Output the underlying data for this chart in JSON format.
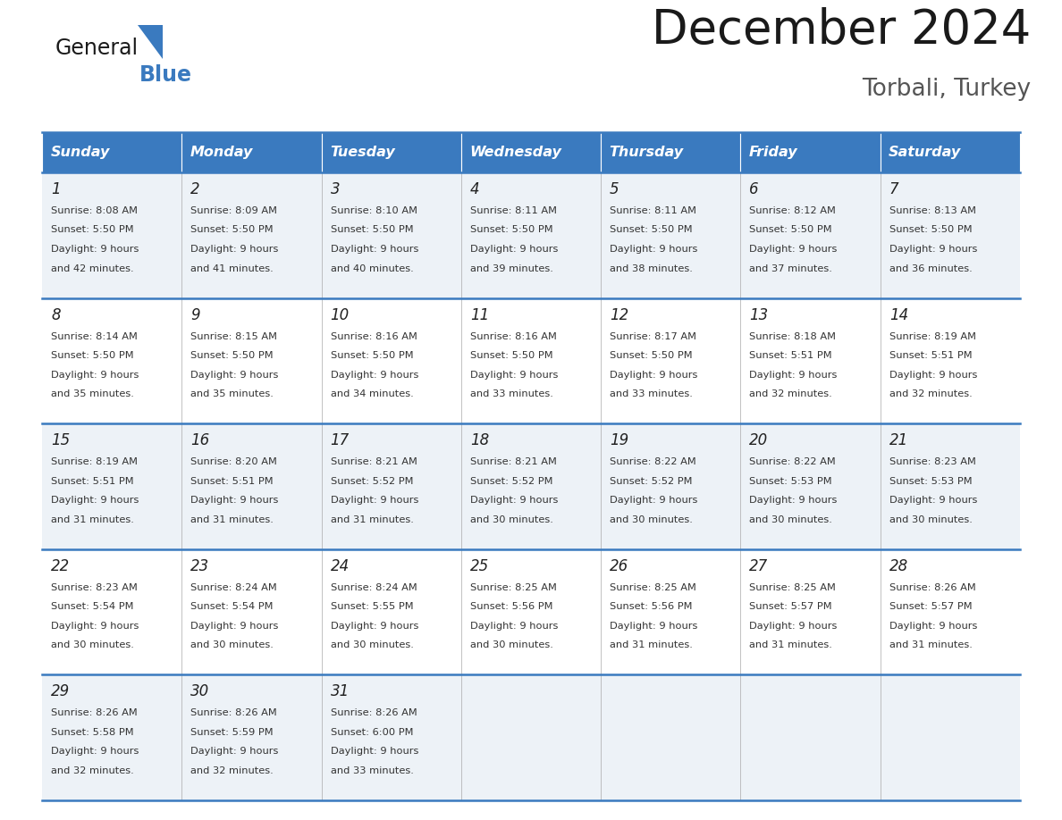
{
  "title": "December 2024",
  "subtitle": "Torbali, Turkey",
  "header_bg": "#3a7abf",
  "header_text_color": "#ffffff",
  "cell_bg_even": "#edf2f7",
  "cell_bg_odd": "#ffffff",
  "border_color": "#3a7abf",
  "grid_line_color": "#aaaaaa",
  "day_names": [
    "Sunday",
    "Monday",
    "Tuesday",
    "Wednesday",
    "Thursday",
    "Friday",
    "Saturday"
  ],
  "weeks": [
    [
      {
        "day": "1",
        "sunrise": "8:08 AM",
        "sunset": "5:50 PM",
        "daylight": "9 hours",
        "daylight2": "and 42 minutes."
      },
      {
        "day": "2",
        "sunrise": "8:09 AM",
        "sunset": "5:50 PM",
        "daylight": "9 hours",
        "daylight2": "and 41 minutes."
      },
      {
        "day": "3",
        "sunrise": "8:10 AM",
        "sunset": "5:50 PM",
        "daylight": "9 hours",
        "daylight2": "and 40 minutes."
      },
      {
        "day": "4",
        "sunrise": "8:11 AM",
        "sunset": "5:50 PM",
        "daylight": "9 hours",
        "daylight2": "and 39 minutes."
      },
      {
        "day": "5",
        "sunrise": "8:11 AM",
        "sunset": "5:50 PM",
        "daylight": "9 hours",
        "daylight2": "and 38 minutes."
      },
      {
        "day": "6",
        "sunrise": "8:12 AM",
        "sunset": "5:50 PM",
        "daylight": "9 hours",
        "daylight2": "and 37 minutes."
      },
      {
        "day": "7",
        "sunrise": "8:13 AM",
        "sunset": "5:50 PM",
        "daylight": "9 hours",
        "daylight2": "and 36 minutes."
      }
    ],
    [
      {
        "day": "8",
        "sunrise": "8:14 AM",
        "sunset": "5:50 PM",
        "daylight": "9 hours",
        "daylight2": "and 35 minutes."
      },
      {
        "day": "9",
        "sunrise": "8:15 AM",
        "sunset": "5:50 PM",
        "daylight": "9 hours",
        "daylight2": "and 35 minutes."
      },
      {
        "day": "10",
        "sunrise": "8:16 AM",
        "sunset": "5:50 PM",
        "daylight": "9 hours",
        "daylight2": "and 34 minutes."
      },
      {
        "day": "11",
        "sunrise": "8:16 AM",
        "sunset": "5:50 PM",
        "daylight": "9 hours",
        "daylight2": "and 33 minutes."
      },
      {
        "day": "12",
        "sunrise": "8:17 AM",
        "sunset": "5:50 PM",
        "daylight": "9 hours",
        "daylight2": "and 33 minutes."
      },
      {
        "day": "13",
        "sunrise": "8:18 AM",
        "sunset": "5:51 PM",
        "daylight": "9 hours",
        "daylight2": "and 32 minutes."
      },
      {
        "day": "14",
        "sunrise": "8:19 AM",
        "sunset": "5:51 PM",
        "daylight": "9 hours",
        "daylight2": "and 32 minutes."
      }
    ],
    [
      {
        "day": "15",
        "sunrise": "8:19 AM",
        "sunset": "5:51 PM",
        "daylight": "9 hours",
        "daylight2": "and 31 minutes."
      },
      {
        "day": "16",
        "sunrise": "8:20 AM",
        "sunset": "5:51 PM",
        "daylight": "9 hours",
        "daylight2": "and 31 minutes."
      },
      {
        "day": "17",
        "sunrise": "8:21 AM",
        "sunset": "5:52 PM",
        "daylight": "9 hours",
        "daylight2": "and 31 minutes."
      },
      {
        "day": "18",
        "sunrise": "8:21 AM",
        "sunset": "5:52 PM",
        "daylight": "9 hours",
        "daylight2": "and 30 minutes."
      },
      {
        "day": "19",
        "sunrise": "8:22 AM",
        "sunset": "5:52 PM",
        "daylight": "9 hours",
        "daylight2": "and 30 minutes."
      },
      {
        "day": "20",
        "sunrise": "8:22 AM",
        "sunset": "5:53 PM",
        "daylight": "9 hours",
        "daylight2": "and 30 minutes."
      },
      {
        "day": "21",
        "sunrise": "8:23 AM",
        "sunset": "5:53 PM",
        "daylight": "9 hours",
        "daylight2": "and 30 minutes."
      }
    ],
    [
      {
        "day": "22",
        "sunrise": "8:23 AM",
        "sunset": "5:54 PM",
        "daylight": "9 hours",
        "daylight2": "and 30 minutes."
      },
      {
        "day": "23",
        "sunrise": "8:24 AM",
        "sunset": "5:54 PM",
        "daylight": "9 hours",
        "daylight2": "and 30 minutes."
      },
      {
        "day": "24",
        "sunrise": "8:24 AM",
        "sunset": "5:55 PM",
        "daylight": "9 hours",
        "daylight2": "and 30 minutes."
      },
      {
        "day": "25",
        "sunrise": "8:25 AM",
        "sunset": "5:56 PM",
        "daylight": "9 hours",
        "daylight2": "and 30 minutes."
      },
      {
        "day": "26",
        "sunrise": "8:25 AM",
        "sunset": "5:56 PM",
        "daylight": "9 hours",
        "daylight2": "and 31 minutes."
      },
      {
        "day": "27",
        "sunrise": "8:25 AM",
        "sunset": "5:57 PM",
        "daylight": "9 hours",
        "daylight2": "and 31 minutes."
      },
      {
        "day": "28",
        "sunrise": "8:26 AM",
        "sunset": "5:57 PM",
        "daylight": "9 hours",
        "daylight2": "and 31 minutes."
      }
    ],
    [
      {
        "day": "29",
        "sunrise": "8:26 AM",
        "sunset": "5:58 PM",
        "daylight": "9 hours",
        "daylight2": "and 32 minutes."
      },
      {
        "day": "30",
        "sunrise": "8:26 AM",
        "sunset": "5:59 PM",
        "daylight": "9 hours",
        "daylight2": "and 32 minutes."
      },
      {
        "day": "31",
        "sunrise": "8:26 AM",
        "sunset": "6:00 PM",
        "daylight": "9 hours",
        "daylight2": "and 33 minutes."
      },
      null,
      null,
      null,
      null
    ]
  ],
  "bg_color": "#ffffff",
  "fig_width": 11.88,
  "fig_height": 9.18,
  "dpi": 100
}
